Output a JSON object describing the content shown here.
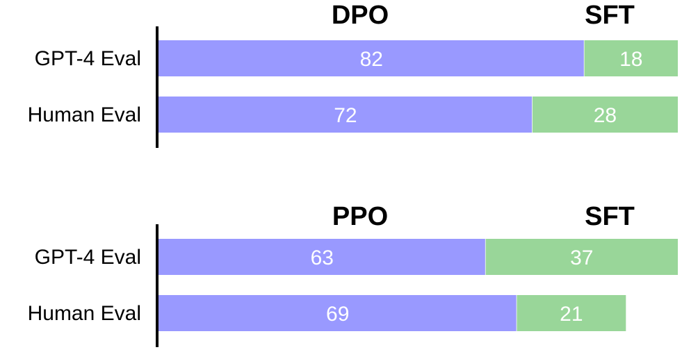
{
  "chart_data": [
    {
      "type": "bar",
      "orientation": "horizontal",
      "stacked": true,
      "title": "",
      "xlabel": "",
      "ylabel": "",
      "xlim": [
        0,
        100
      ],
      "grid": false,
      "legend": "none",
      "categories": [
        "GPT-4 Eval",
        "Human Eval"
      ],
      "series": [
        {
          "name": "DPO",
          "color": "#9999ff",
          "values": [
            82,
            72
          ]
        },
        {
          "name": "SFT",
          "color": "#99d699",
          "values": [
            18,
            28
          ]
        }
      ]
    },
    {
      "type": "bar",
      "orientation": "horizontal",
      "stacked": true,
      "title": "",
      "xlabel": "",
      "ylabel": "",
      "xlim": [
        0,
        100
      ],
      "grid": false,
      "legend": "none",
      "categories": [
        "GPT-4 Eval",
        "Human Eval"
      ],
      "series": [
        {
          "name": "PPO",
          "color": "#9999ff",
          "values": [
            63,
            69
          ]
        },
        {
          "name": "SFT",
          "color": "#99d699",
          "values": [
            37,
            21
          ]
        }
      ]
    }
  ]
}
